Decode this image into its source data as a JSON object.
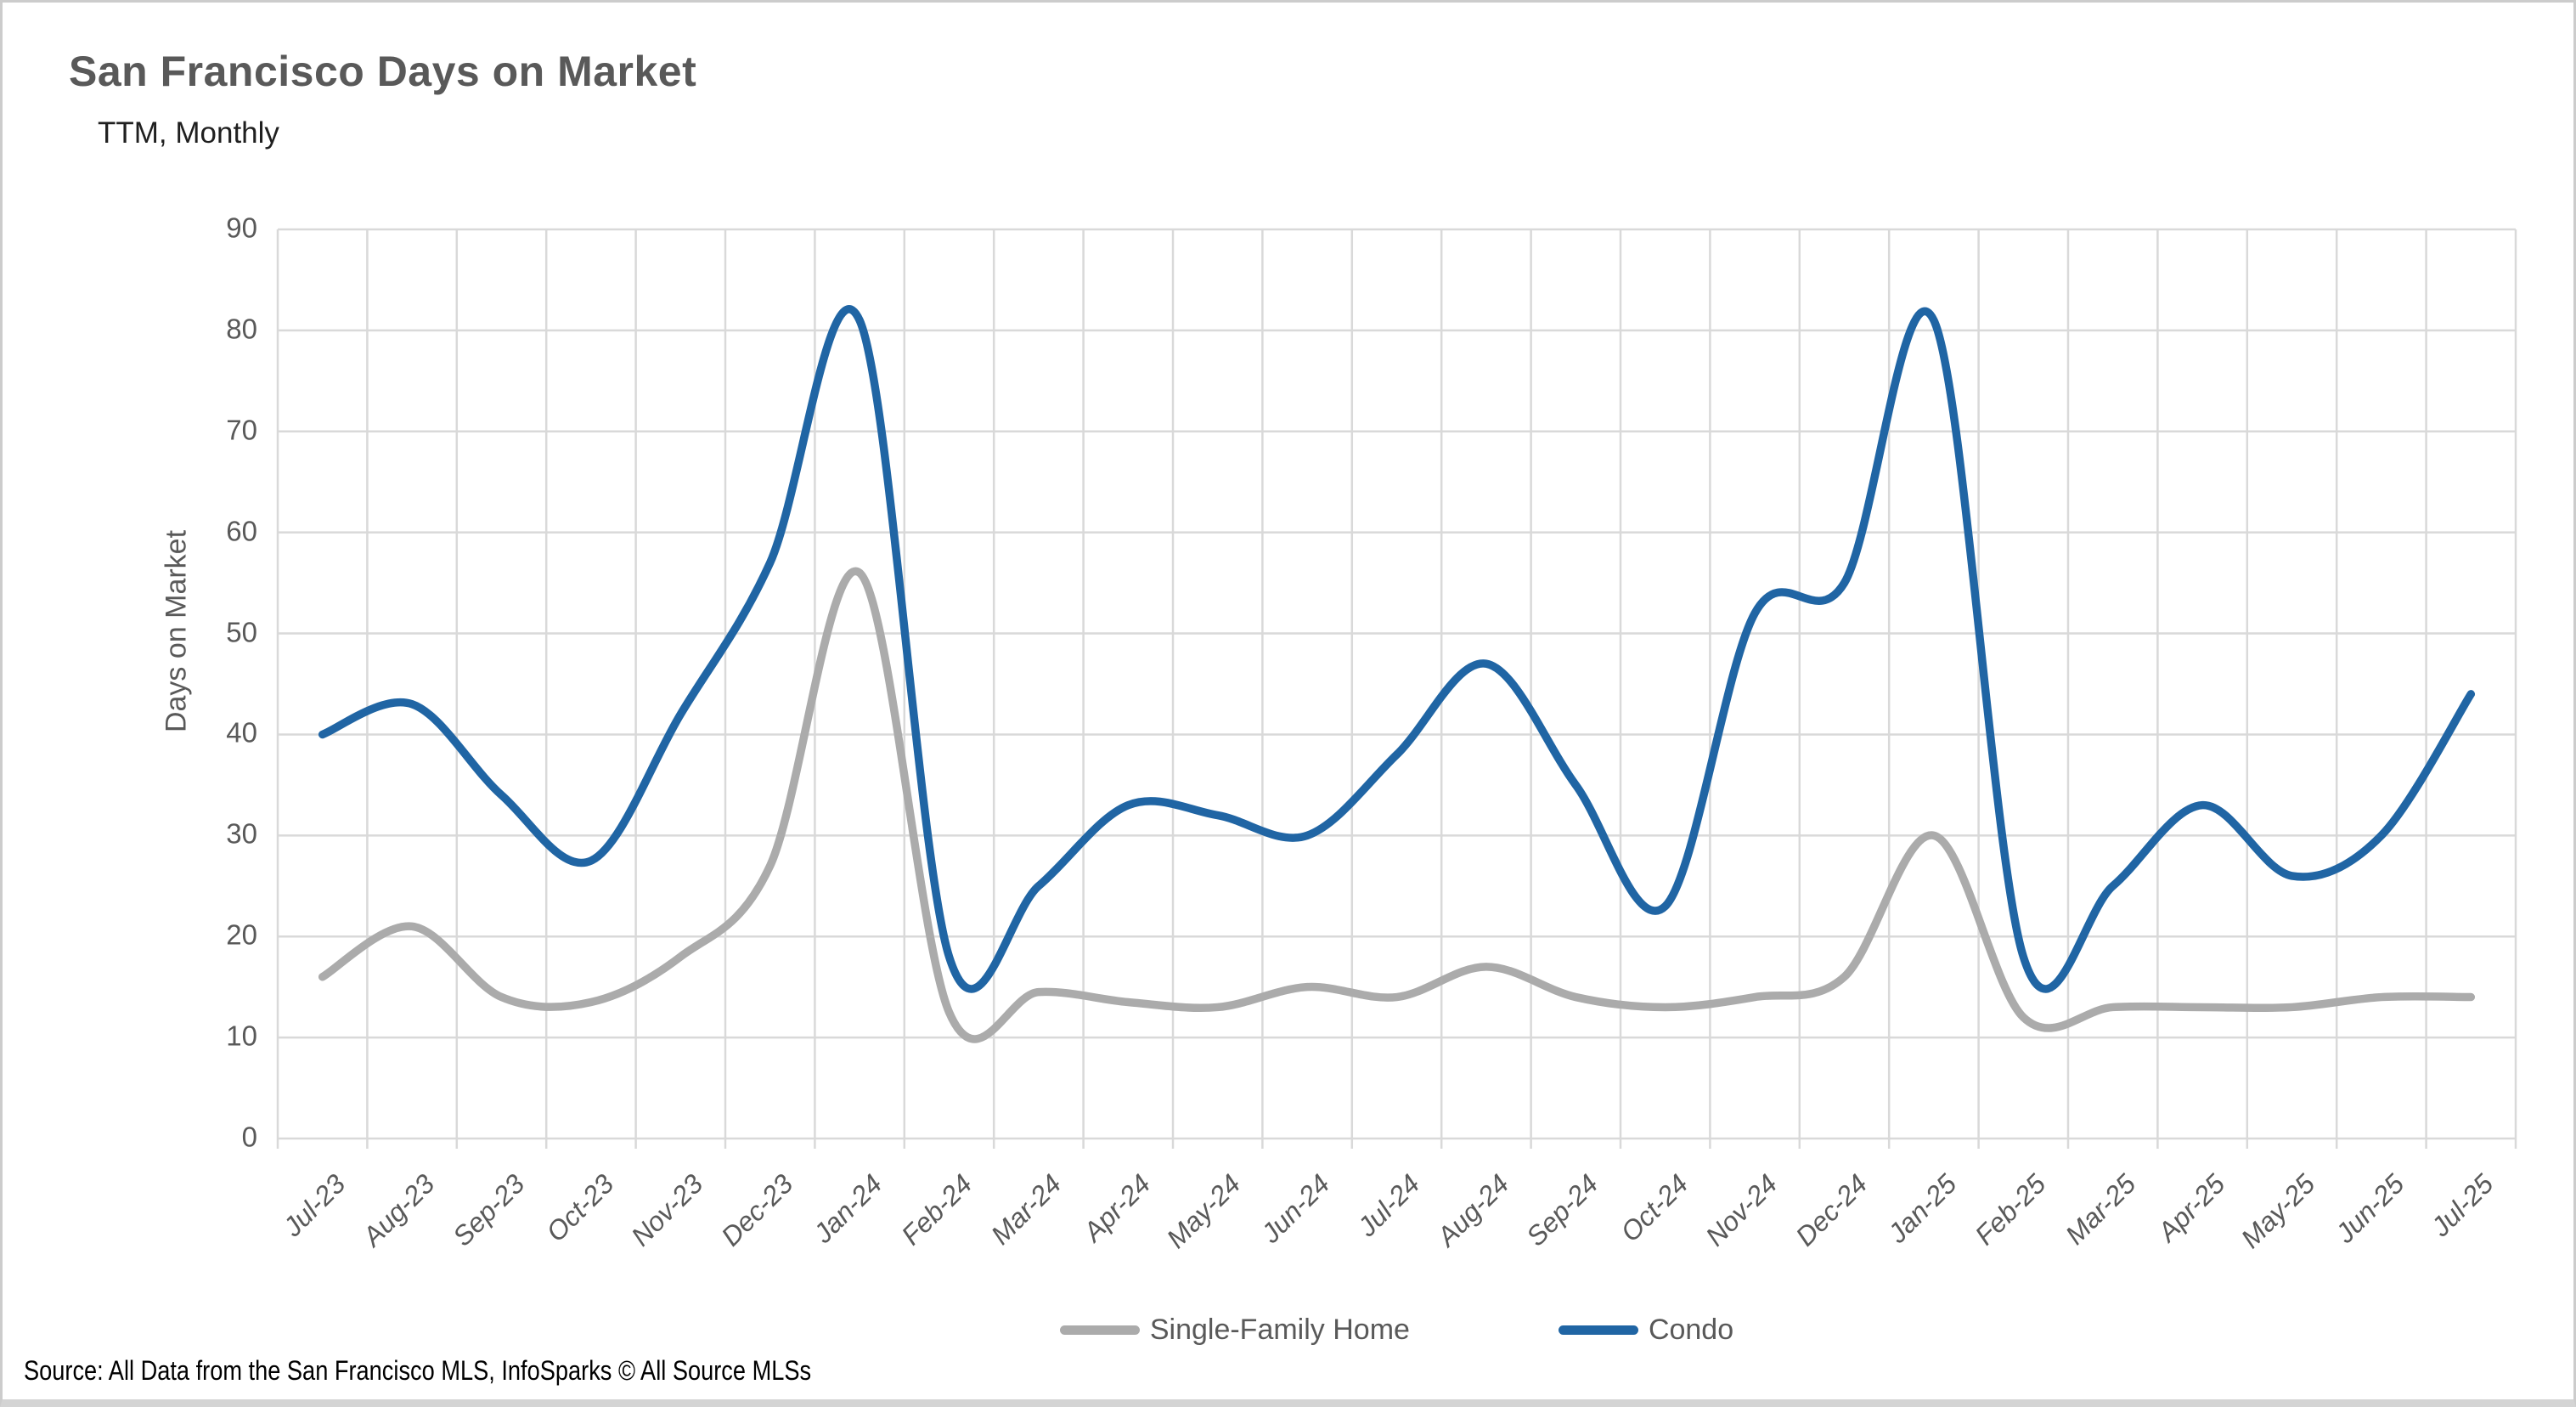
{
  "header": {
    "title": "San Francisco Days on Market",
    "subtitle": "TTM, Monthly"
  },
  "source_note": "Source: All Data from the San Francisco MLS, InfoSparks © All Source MLSs",
  "colors": {
    "single_family": "#ABABAB",
    "condo": "#2065A4",
    "gridline": "#D9D9D9",
    "axis_text": "#595959",
    "title_text": "#595959"
  },
  "chart_data": {
    "type": "line",
    "title": "San Francisco Days on Market",
    "subtitle": "TTM, Monthly",
    "xlabel": "",
    "ylabel": "Days on Market",
    "ylim": [
      0,
      90
    ],
    "yticks": [
      0,
      10,
      20,
      30,
      40,
      50,
      60,
      70,
      80,
      90
    ],
    "grid": true,
    "smoothed_lines": true,
    "legend_position": "bottom",
    "categories": [
      "Jul-23",
      "Aug-23",
      "Sep-23",
      "Oct-23",
      "Nov-23",
      "Dec-23",
      "Jan-24",
      "Feb-24",
      "Mar-24",
      "Apr-24",
      "May-24",
      "Jun-24",
      "Jul-24",
      "Aug-24",
      "Sep-24",
      "Oct-24",
      "Nov-24",
      "Dec-24",
      "Jan-25",
      "Feb-25",
      "Mar-25",
      "Apr-25",
      "May-25",
      "Jun-25",
      "Jul-25"
    ],
    "series": [
      {
        "name": "Single-Family Home",
        "color": "#ABABAB",
        "values": [
          16,
          21,
          14,
          13.5,
          18,
          27,
          56,
          12.5,
          14.5,
          13.5,
          13,
          15,
          14,
          17,
          14,
          13,
          14,
          16,
          30,
          12,
          13,
          13,
          13,
          14,
          14
        ]
      },
      {
        "name": "Condo",
        "color": "#2065A4",
        "values": [
          40,
          43,
          34,
          27.5,
          42,
          57,
          81,
          18,
          25,
          33,
          32,
          30,
          38,
          47,
          35,
          23,
          52,
          55,
          81,
          18,
          25,
          33,
          26,
          30,
          44
        ]
      }
    ]
  }
}
